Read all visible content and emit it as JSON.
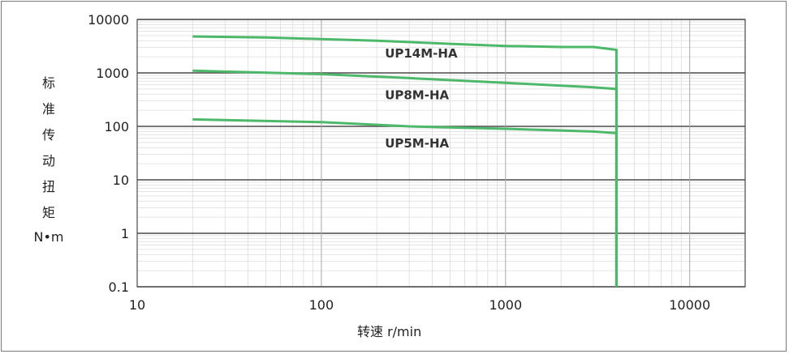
{
  "chart_data": {
    "type": "line",
    "title": "",
    "xlabel": "转速 r/min",
    "ylabel_chars": [
      "标",
      "准",
      "传",
      "动",
      "扭",
      "矩",
      "N•m"
    ],
    "x_scale": "log",
    "y_scale": "log",
    "xlim": [
      10,
      20000
    ],
    "ylim": [
      0.1,
      10000
    ],
    "x_ticks": [
      10,
      100,
      1000,
      10000
    ],
    "x_tick_labels": [
      "10",
      "100",
      "1000",
      "10000"
    ],
    "y_ticks": [
      0.1,
      1,
      10,
      100,
      1000,
      10000
    ],
    "y_tick_labels": [
      "0.1",
      "1",
      "10",
      "100",
      "1000",
      "10000"
    ],
    "grid": true,
    "series": [
      {
        "name": "UP14M-HA",
        "x": [
          20,
          50,
          100,
          200,
          500,
          1000,
          2000,
          3000,
          4000,
          4000
        ],
        "y": [
          4800,
          4600,
          4300,
          4000,
          3500,
          3200,
          3050,
          3050,
          2700,
          0.1
        ],
        "color": "#4db86a"
      },
      {
        "name": "UP8M-HA",
        "x": [
          20,
          100,
          300,
          1000,
          3000,
          4000,
          4000
        ],
        "y": [
          1100,
          950,
          800,
          650,
          540,
          500,
          0.1
        ],
        "color": "#4db86a"
      },
      {
        "name": "UP5M-HA",
        "x": [
          20,
          100,
          300,
          1000,
          3000,
          4000,
          4000
        ],
        "y": [
          135,
          120,
          100,
          90,
          80,
          75,
          0.1
        ],
        "color": "#4db86a"
      }
    ],
    "annotations": [
      {
        "text": "UP14M-HA",
        "x": 200,
        "y": 2300
      },
      {
        "text": "UP8M-HA",
        "x": 200,
        "y": 380
      },
      {
        "text": "UP5M-HA",
        "x": 200,
        "y": 48
      }
    ]
  }
}
